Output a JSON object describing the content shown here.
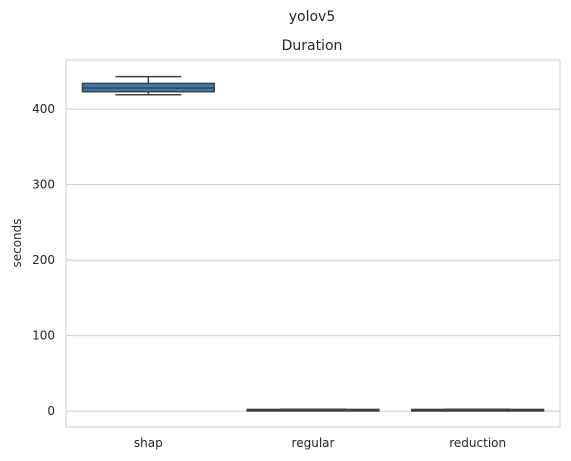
{
  "chart_data": {
    "type": "box",
    "suptitle": "yolov5",
    "title": "Duration",
    "xlabel": "",
    "ylabel": "seconds",
    "ylim": [
      -21,
      465
    ],
    "yticks": [
      0,
      100,
      200,
      300,
      400
    ],
    "grid": "y",
    "categories": [
      "shap",
      "regular",
      "reduction"
    ],
    "boxes": [
      {
        "category": "shap",
        "whisker_low": 419,
        "q1": 423,
        "median": 428,
        "q3": 434,
        "whisker_high": 443
      },
      {
        "category": "regular",
        "whisker_low": 1.5,
        "q1": 1.8,
        "median": 2.0,
        "q3": 2.2,
        "whisker_high": 2.5
      },
      {
        "category": "reduction",
        "whisker_low": 1.5,
        "q1": 1.8,
        "median": 2.0,
        "q3": 2.2,
        "whisker_high": 2.5
      }
    ],
    "colors": {
      "box_fill": "#3a7ab8",
      "line": "#3f3f3f",
      "grid": "#cccccc",
      "spine": "#cccccc"
    }
  }
}
